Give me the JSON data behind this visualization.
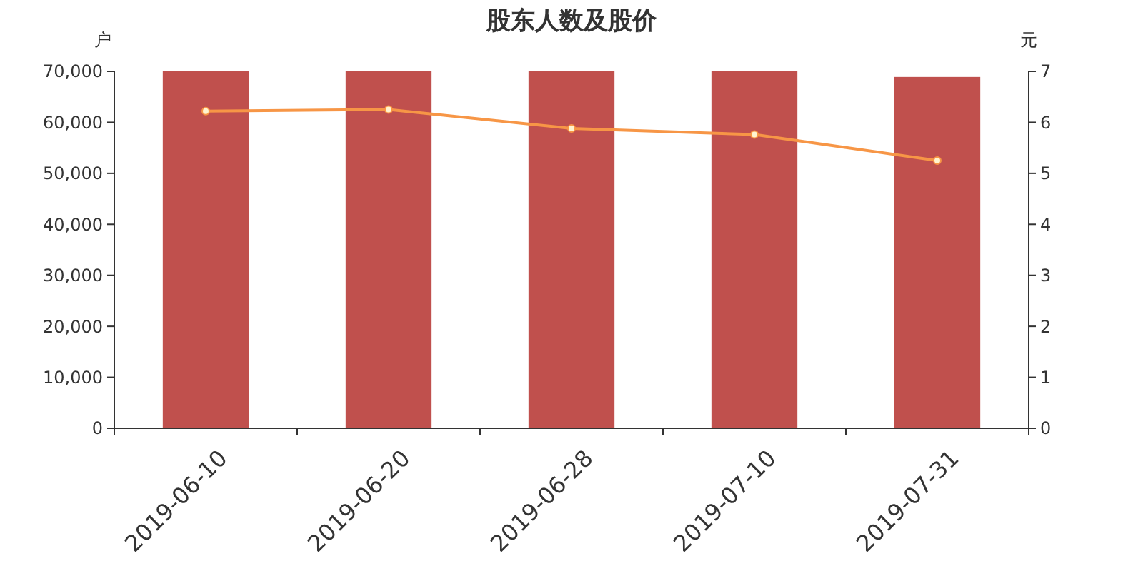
{
  "chart_data": {
    "type": "bar",
    "title": "股东人数及股价",
    "ylabel": "户",
    "y2label": "元",
    "categories": [
      "2019-06-10",
      "2019-06-20",
      "2019-06-28",
      "2019-07-10",
      "2019-07-31"
    ],
    "series": [
      {
        "color": "#c0504d",
        "values": [
          70000,
          70000,
          70000,
          70000,
          68900
        ]
      },
      {
        "type": "line",
        "axis": "y2",
        "color": "#f79646",
        "marker": "circle",
        "values": [
          6.22,
          6.25,
          5.88,
          5.76,
          5.25
        ]
      }
    ],
    "ylim": [
      0,
      70000
    ],
    "yticks": [
      {
        "value": 0,
        "label": "0"
      },
      {
        "value": 10000,
        "label": "10,000"
      },
      {
        "value": 20000,
        "label": "20,000"
      },
      {
        "value": 30000,
        "label": "30,000"
      },
      {
        "value": 40000,
        "label": "40,000"
      },
      {
        "value": 50000,
        "label": "50,000"
      },
      {
        "value": 60000,
        "label": "60,000"
      },
      {
        "value": 70000,
        "label": "70,000"
      }
    ],
    "y2lim": [
      0,
      7
    ],
    "y2ticks": [
      0,
      1,
      2,
      3,
      4,
      5,
      6,
      7
    ],
    "grid": false
  }
}
